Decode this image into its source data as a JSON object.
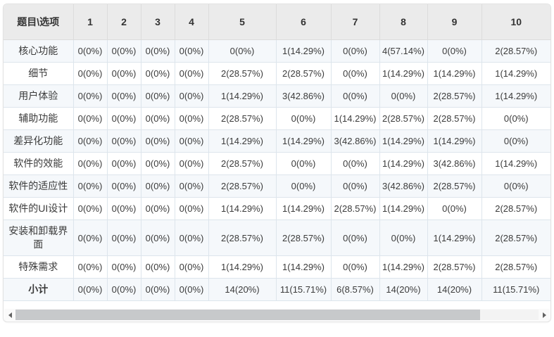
{
  "colors": {
    "header_bg": "#ebebeb",
    "stripe_bg": "#f5f8fb",
    "row_bg": "#ffffff",
    "border": "#dde5ec",
    "text": "#3b3b3b",
    "scroll_thumb": "#c7c9cb"
  },
  "table": {
    "corner_header": "题目\\选项",
    "columns": [
      "1",
      "2",
      "3",
      "4",
      "5",
      "6",
      "7",
      "8",
      "9",
      "10"
    ],
    "rows": [
      {
        "label": "核心功能",
        "values": [
          "0(0%)",
          "0(0%)",
          "0(0%)",
          "0(0%)",
          "0(0%)",
          "1(14.29%)",
          "0(0%)",
          "4(57.14%)",
          "0(0%)",
          "2(28.57%)"
        ]
      },
      {
        "label": "细节",
        "values": [
          "0(0%)",
          "0(0%)",
          "0(0%)",
          "0(0%)",
          "2(28.57%)",
          "2(28.57%)",
          "0(0%)",
          "1(14.29%)",
          "1(14.29%)",
          "1(14.29%)"
        ]
      },
      {
        "label": "用户体验",
        "values": [
          "0(0%)",
          "0(0%)",
          "0(0%)",
          "0(0%)",
          "1(14.29%)",
          "3(42.86%)",
          "0(0%)",
          "0(0%)",
          "2(28.57%)",
          "1(14.29%)"
        ]
      },
      {
        "label": "辅助功能",
        "values": [
          "0(0%)",
          "0(0%)",
          "0(0%)",
          "0(0%)",
          "2(28.57%)",
          "0(0%)",
          "1(14.29%)",
          "2(28.57%)",
          "2(28.57%)",
          "0(0%)"
        ]
      },
      {
        "label": "差异化功能",
        "values": [
          "0(0%)",
          "0(0%)",
          "0(0%)",
          "0(0%)",
          "1(14.29%)",
          "1(14.29%)",
          "3(42.86%)",
          "1(14.29%)",
          "1(14.29%)",
          "0(0%)"
        ]
      },
      {
        "label": "软件的效能",
        "values": [
          "0(0%)",
          "0(0%)",
          "0(0%)",
          "0(0%)",
          "2(28.57%)",
          "0(0%)",
          "0(0%)",
          "1(14.29%)",
          "3(42.86%)",
          "1(14.29%)"
        ]
      },
      {
        "label": "软件的适应性",
        "values": [
          "0(0%)",
          "0(0%)",
          "0(0%)",
          "0(0%)",
          "2(28.57%)",
          "0(0%)",
          "0(0%)",
          "3(42.86%)",
          "2(28.57%)",
          "0(0%)"
        ]
      },
      {
        "label": "软件的UI设计",
        "values": [
          "0(0%)",
          "0(0%)",
          "0(0%)",
          "0(0%)",
          "1(14.29%)",
          "1(14.29%)",
          "2(28.57%)",
          "1(14.29%)",
          "0(0%)",
          "2(28.57%)"
        ]
      },
      {
        "label": "安装和卸载界面",
        "values": [
          "0(0%)",
          "0(0%)",
          "0(0%)",
          "0(0%)",
          "2(28.57%)",
          "2(28.57%)",
          "0(0%)",
          "0(0%)",
          "1(14.29%)",
          "2(28.57%)"
        ]
      },
      {
        "label": "特殊需求",
        "values": [
          "0(0%)",
          "0(0%)",
          "0(0%)",
          "0(0%)",
          "1(14.29%)",
          "1(14.29%)",
          "0(0%)",
          "1(14.29%)",
          "2(28.57%)",
          "2(28.57%)"
        ]
      },
      {
        "label": "小计",
        "values": [
          "0(0%)",
          "0(0%)",
          "0(0%)",
          "0(0%)",
          "14(20%)",
          "11(15.71%)",
          "6(8.57%)",
          "14(20%)",
          "14(20%)",
          "11(15.71%)"
        ]
      }
    ]
  }
}
